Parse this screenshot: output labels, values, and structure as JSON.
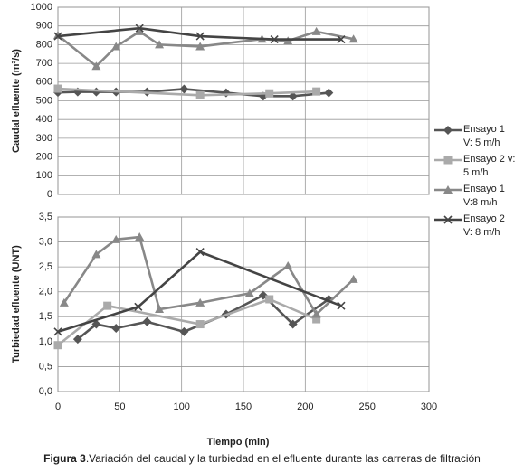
{
  "chart_data": [
    {
      "type": "line",
      "ylabel": "Caudal efluente (m³/s)",
      "xlim": [
        0,
        300
      ],
      "ylim": [
        0,
        1000
      ],
      "yticks": [
        0,
        100,
        200,
        300,
        400,
        500,
        600,
        700,
        800,
        900,
        1000
      ],
      "grid": true,
      "legend": "right",
      "series": [
        {
          "name": "Ensayo 1 V: 5 m/h",
          "color": "#555555",
          "marker": "diamond",
          "x": [
            0,
            16,
            31,
            47,
            72,
            102,
            136,
            166,
            190,
            219
          ],
          "values": [
            545,
            548,
            548,
            548,
            548,
            563,
            543,
            525,
            525,
            543
          ]
        },
        {
          "name": "Ensayo 2 v: 5 m/h",
          "color": "#aaaaaa",
          "marker": "square",
          "x": [
            0,
            115,
            171,
            209
          ],
          "values": [
            565,
            530,
            540,
            550
          ]
        },
        {
          "name": "Ensayo 1 V:8 m/h",
          "color": "#888888",
          "marker": "triangle",
          "x": [
            0,
            31,
            47,
            66,
            82,
            115,
            165,
            186,
            209,
            239
          ],
          "values": [
            850,
            685,
            790,
            870,
            800,
            790,
            830,
            820,
            870,
            830
          ]
        },
        {
          "name": "Ensayo 2 V: 8 m/h",
          "color": "#444444",
          "marker": "x",
          "x": [
            0,
            66,
            115,
            175,
            229
          ],
          "values": [
            845,
            888,
            845,
            828,
            828
          ]
        }
      ]
    },
    {
      "type": "line",
      "ylabel": "Turbiedad efluente (UNT)",
      "xlabel": "Tiempo (min)",
      "xlim": [
        0,
        300
      ],
      "ylim": [
        0,
        3.5
      ],
      "xticks": [
        0,
        50,
        100,
        150,
        200,
        250,
        300
      ],
      "yticks": [
        {
          "value": 0,
          "label": "0,0"
        },
        {
          "value": 0.5,
          "label": "0,5"
        },
        {
          "value": 1,
          "label": "1,0"
        },
        {
          "value": 1.5,
          "label": "1,5"
        },
        {
          "value": 2,
          "label": "2,0"
        },
        {
          "value": 2.5,
          "label": "2,5"
        },
        {
          "value": 3,
          "label": "3,0"
        },
        {
          "value": 3.5,
          "label": "3,5"
        }
      ],
      "grid": true,
      "series": [
        {
          "color": "#555555",
          "marker": "diamond",
          "x": [
            16,
            31,
            47,
            72,
            102,
            136,
            166,
            190,
            219
          ],
          "values": [
            1.05,
            1.35,
            1.27,
            1.4,
            1.2,
            1.55,
            1.93,
            1.35,
            1.85
          ]
        },
        {
          "color": "#aaaaaa",
          "marker": "square",
          "x": [
            0,
            40,
            115,
            171,
            209
          ],
          "values": [
            0.93,
            1.72,
            1.35,
            1.85,
            1.45
          ]
        },
        {
          "color": "#888888",
          "marker": "triangle",
          "x": [
            5,
            31,
            47,
            66,
            82,
            115,
            155,
            186,
            209,
            239
          ],
          "values": [
            1.78,
            2.75,
            3.05,
            3.1,
            1.65,
            1.78,
            1.97,
            2.52,
            1.55,
            2.25
          ]
        },
        {
          "color": "#444444",
          "marker": "x",
          "x": [
            0,
            65,
            115,
            229
          ],
          "values": [
            1.2,
            1.7,
            2.8,
            1.72
          ]
        }
      ]
    }
  ],
  "caption": {
    "label": "Figura 3",
    "text": ".Variación del caudal y la turbiedad en el efluente durante las carreras de filtración"
  }
}
